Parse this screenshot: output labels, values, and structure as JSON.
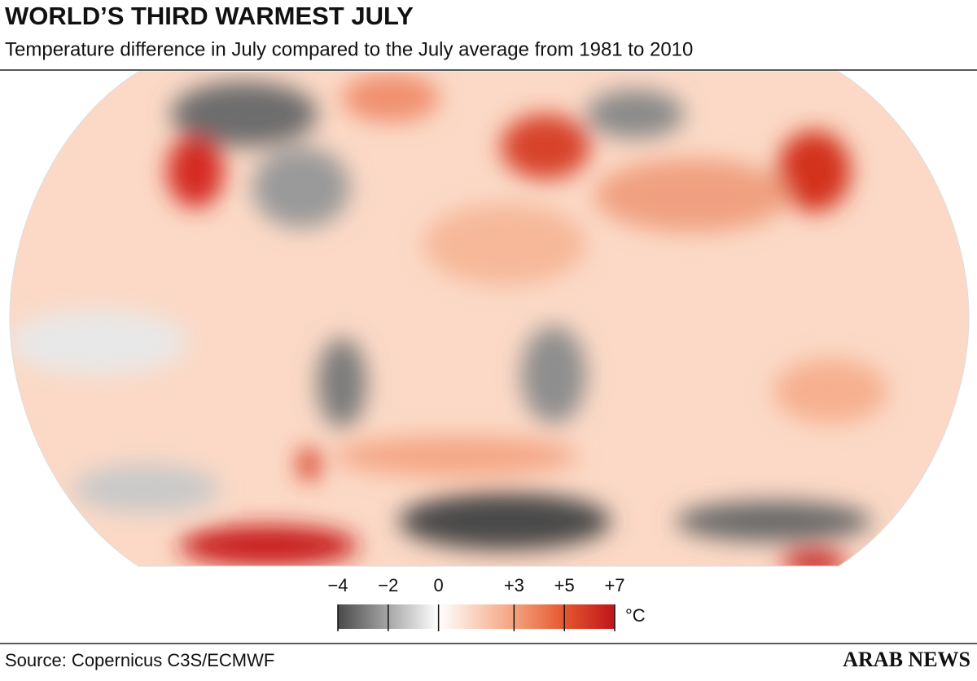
{
  "header": {
    "title": "WORLD’S THIRD WARMEST JULY",
    "subtitle": "Temperature difference in July compared to the July average from 1981 to 2010"
  },
  "legend": {
    "lim": [
      -4,
      7
    ],
    "ticks": [
      {
        "value": -4,
        "label": "−4"
      },
      {
        "value": -2,
        "label": "−2"
      },
      {
        "value": 0,
        "label": "0"
      },
      {
        "value": 3,
        "label": "+3"
      },
      {
        "value": 5,
        "label": "+5"
      },
      {
        "value": 7,
        "label": "+7"
      }
    ],
    "color_stops": [
      {
        "value": -4,
        "color": "#4a4a4a"
      },
      {
        "value": -2,
        "color": "#a6a6a6"
      },
      {
        "value": 0,
        "color": "#ffffff"
      },
      {
        "value": 3,
        "color": "#f4a27e"
      },
      {
        "value": 5,
        "color": "#e4572e"
      },
      {
        "value": 7,
        "color": "#c0141b"
      }
    ],
    "unit": "°C"
  },
  "footer": {
    "source": "Source: Copernicus C3S/ECMWF",
    "brand": "ARAB NEWS"
  }
}
